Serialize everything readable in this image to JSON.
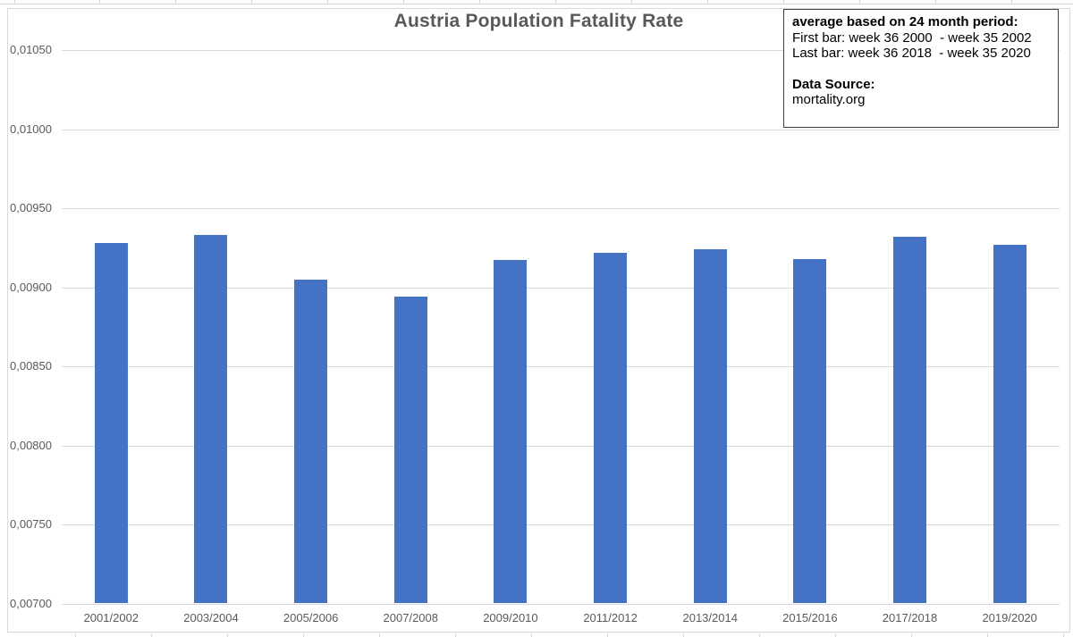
{
  "chart": {
    "title": "Austria Population Fatality Rate",
    "annotation": {
      "heading": "average based on 24 month period:",
      "first_bar": "First bar: week 36 2000  - week 35 2002",
      "last_bar": "Last bar: week 36 2018  - week 35 2020",
      "source_label": "Data Source:",
      "source_value": "mortality.org"
    },
    "colors": {
      "bar": "#4472C4",
      "gridline": "#d9d9d9",
      "axis_text": "#595959",
      "title_text": "#595959",
      "annotation_border": "#404040"
    }
  },
  "chart_data": {
    "type": "bar",
    "title": "Austria Population Fatality Rate",
    "categories": [
      "2001/2002",
      "2003/2004",
      "2005/2006",
      "2007/2008",
      "2009/2010",
      "2011/2012",
      "2013/2014",
      "2015/2016",
      "2017/2018",
      "2019/2020"
    ],
    "values": [
      0.00928,
      0.00933,
      0.00905,
      0.00894,
      0.00917,
      0.00922,
      0.00924,
      0.00918,
      0.00932,
      0.00927
    ],
    "xlabel": "",
    "ylabel": "",
    "ylim": [
      0.007,
      0.0105
    ],
    "grid": true,
    "legend": "none",
    "decimal_separator": "comma",
    "yticks": [
      {
        "value": 0.007,
        "label": "0,00700"
      },
      {
        "value": 0.0075,
        "label": "0,00750"
      },
      {
        "value": 0.008,
        "label": "0,00800"
      },
      {
        "value": 0.0085,
        "label": "0,00850"
      },
      {
        "value": 0.009,
        "label": "0,00900"
      },
      {
        "value": 0.0095,
        "label": "0,00950"
      },
      {
        "value": 0.01,
        "label": "0,01000"
      },
      {
        "value": 0.0105,
        "label": "0,01050"
      }
    ]
  }
}
